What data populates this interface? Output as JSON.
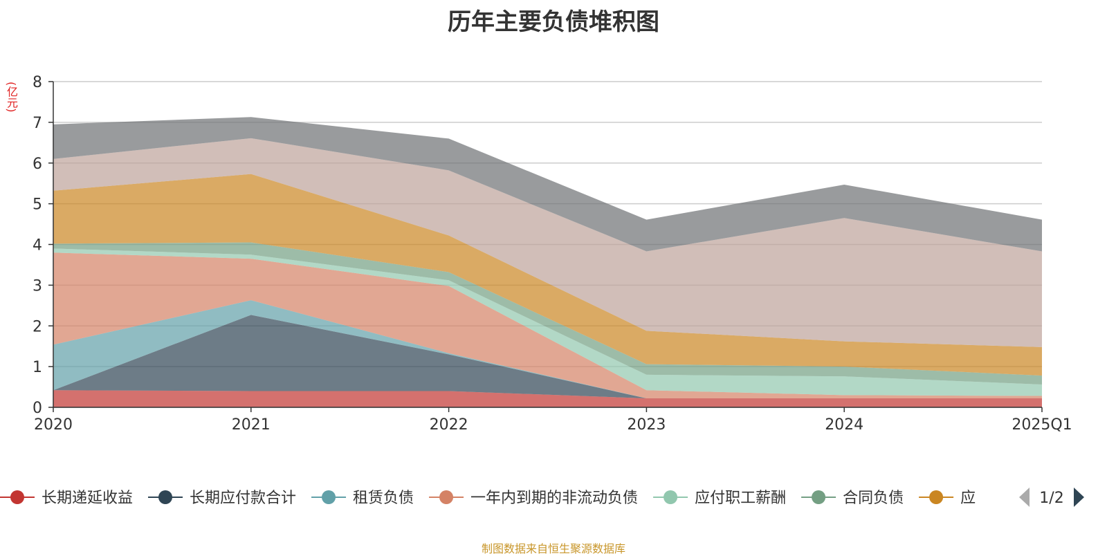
{
  "chart_data": {
    "type": "area",
    "stacked": true,
    "title": "历年主要负债堆积图",
    "unit_label": "(亿元)",
    "x": [
      "2020",
      "2021",
      "2022",
      "2023",
      "2024",
      "2025Q1"
    ],
    "ylim": [
      0,
      8
    ],
    "yticks": [
      "0",
      "1",
      "2",
      "3",
      "4",
      "5",
      "6",
      "7",
      "8"
    ],
    "grid": true,
    "series": [
      {
        "name": "长期递延收益",
        "color": "#c23531",
        "values": [
          0.42,
          0.4,
          0.4,
          0.22,
          0.22,
          0.22
        ]
      },
      {
        "name": "长期应付款合计",
        "color": "#2f4554",
        "values": [
          0.0,
          1.87,
          0.9,
          0.0,
          0.0,
          0.0
        ]
      },
      {
        "name": "租赁负债",
        "color": "#61a0a8",
        "values": [
          1.12,
          0.36,
          0.03,
          0.0,
          0.0,
          0.0
        ]
      },
      {
        "name": "一年内到期的非流动负债",
        "color": "#d48265",
        "values": [
          2.26,
          1.02,
          1.65,
          0.2,
          0.08,
          0.06
        ]
      },
      {
        "name": "应付职工薪酬",
        "color": "#91c7ae",
        "values": [
          0.1,
          0.1,
          0.14,
          0.38,
          0.46,
          0.28
        ]
      },
      {
        "name": "合同负债",
        "color": "#749f83",
        "values": [
          0.12,
          0.3,
          0.2,
          0.26,
          0.24,
          0.22
        ]
      },
      {
        "name": "应付账款",
        "color": "#ca8622",
        "values": [
          1.3,
          1.68,
          0.9,
          0.82,
          0.62,
          0.7
        ]
      },
      {
        "name": "",
        "color": "#bda29a",
        "values": [
          0.78,
          0.88,
          1.6,
          1.95,
          3.03,
          2.35
        ]
      },
      {
        "name": "",
        "color": "#6e7074",
        "values": [
          0.85,
          0.52,
          0.78,
          0.78,
          0.82,
          0.78
        ]
      }
    ],
    "legend": {
      "position": "bottom",
      "visible_items": [
        "长期递延收益",
        "长期应付款合计",
        "租赁负债",
        "一年内到期的非流动负债",
        "应付职工薪酬",
        "合同负债",
        "应"
      ],
      "page": "1/2"
    },
    "source_note": "制图数据来自恒生聚源数据库"
  }
}
